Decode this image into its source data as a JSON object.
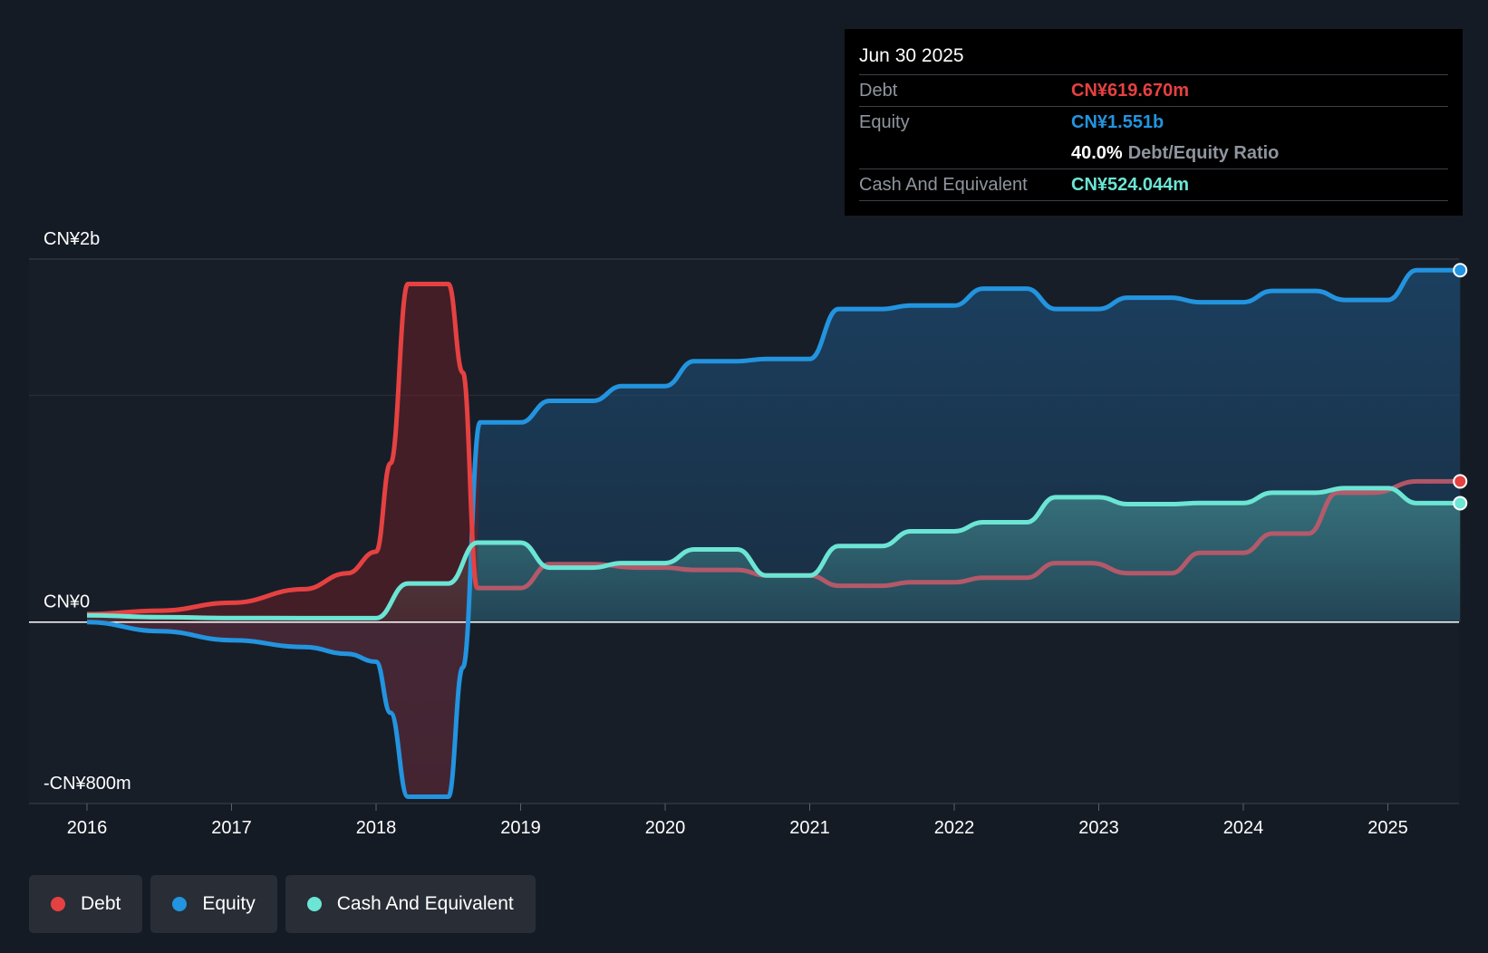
{
  "tooltip": {
    "date": "Jun 30 2025",
    "debt_label": "Debt",
    "debt_value": "CN¥619.670m",
    "equity_label": "Equity",
    "equity_value": "CN¥1.551b",
    "ratio_value": "40.0%",
    "ratio_label": "Debt/Equity Ratio",
    "cash_label": "Cash And Equivalent",
    "cash_value": "CN¥524.044m"
  },
  "legend": [
    {
      "label": "Debt",
      "color": "#e64141"
    },
    {
      "label": "Equity",
      "color": "#2394df"
    },
    {
      "label": "Cash And Equivalent",
      "color": "#6ce5d4"
    }
  ],
  "chart_data": {
    "type": "area",
    "y_unit": "CN¥ millions",
    "ylim": [
      -800,
      1600
    ],
    "y_tick_labels": [
      {
        "value": 1600,
        "label": "CN¥2b"
      },
      {
        "value": 0,
        "label": "CN¥0"
      },
      {
        "value": -800,
        "label": "-CN¥800m"
      }
    ],
    "xlim": [
      2015.6,
      2025.5
    ],
    "x_ticks": [
      "2016",
      "2017",
      "2018",
      "2019",
      "2020",
      "2021",
      "2022",
      "2023",
      "2024",
      "2025"
    ],
    "series": [
      {
        "name": "Debt",
        "color": "#e64141",
        "points": [
          [
            2016.0,
            35
          ],
          [
            2016.5,
            50
          ],
          [
            2017.0,
            85
          ],
          [
            2017.5,
            145
          ],
          [
            2017.8,
            215
          ],
          [
            2018.0,
            310
          ],
          [
            2018.1,
            700
          ],
          [
            2018.22,
            1490
          ],
          [
            2018.5,
            1490
          ],
          [
            2018.6,
            1100
          ],
          [
            2018.7,
            150
          ],
          [
            2019.0,
            150
          ],
          [
            2019.2,
            255
          ],
          [
            2019.5,
            255
          ],
          [
            2019.8,
            240
          ],
          [
            2020.0,
            240
          ],
          [
            2020.2,
            230
          ],
          [
            2020.5,
            230
          ],
          [
            2020.7,
            205
          ],
          [
            2021.0,
            205
          ],
          [
            2021.2,
            160
          ],
          [
            2021.5,
            160
          ],
          [
            2021.7,
            175
          ],
          [
            2022.0,
            175
          ],
          [
            2022.2,
            195
          ],
          [
            2022.5,
            195
          ],
          [
            2022.7,
            260
          ],
          [
            2022.95,
            260
          ],
          [
            2023.2,
            215
          ],
          [
            2023.5,
            215
          ],
          [
            2023.7,
            305
          ],
          [
            2024.0,
            305
          ],
          [
            2024.2,
            390
          ],
          [
            2024.45,
            390
          ],
          [
            2024.65,
            570
          ],
          [
            2024.9,
            570
          ],
          [
            2025.2,
            620
          ],
          [
            2025.5,
            620
          ]
        ]
      },
      {
        "name": "Equity",
        "color": "#2394df",
        "points": [
          [
            2016.0,
            0
          ],
          [
            2016.5,
            -40
          ],
          [
            2017.0,
            -80
          ],
          [
            2017.5,
            -110
          ],
          [
            2017.8,
            -140
          ],
          [
            2018.0,
            -175
          ],
          [
            2018.1,
            -400
          ],
          [
            2018.22,
            -770
          ],
          [
            2018.5,
            -770
          ],
          [
            2018.6,
            -200
          ],
          [
            2018.72,
            880
          ],
          [
            2019.0,
            880
          ],
          [
            2019.2,
            975
          ],
          [
            2019.5,
            975
          ],
          [
            2019.7,
            1040
          ],
          [
            2020.0,
            1040
          ],
          [
            2020.2,
            1150
          ],
          [
            2020.5,
            1150
          ],
          [
            2020.7,
            1160
          ],
          [
            2021.0,
            1160
          ],
          [
            2021.2,
            1380
          ],
          [
            2021.5,
            1380
          ],
          [
            2021.7,
            1395
          ],
          [
            2022.0,
            1395
          ],
          [
            2022.2,
            1470
          ],
          [
            2022.5,
            1470
          ],
          [
            2022.7,
            1380
          ],
          [
            2023.0,
            1380
          ],
          [
            2023.2,
            1430
          ],
          [
            2023.5,
            1430
          ],
          [
            2023.7,
            1410
          ],
          [
            2024.0,
            1410
          ],
          [
            2024.2,
            1460
          ],
          [
            2024.5,
            1460
          ],
          [
            2024.7,
            1420
          ],
          [
            2025.0,
            1420
          ],
          [
            2025.2,
            1551
          ],
          [
            2025.5,
            1551
          ]
        ]
      },
      {
        "name": "Cash And Equivalent",
        "color": "#6ce5d4",
        "points": [
          [
            2016.0,
            30
          ],
          [
            2016.5,
            22
          ],
          [
            2017.0,
            18
          ],
          [
            2017.5,
            17
          ],
          [
            2018.0,
            17
          ],
          [
            2018.22,
            170
          ],
          [
            2018.5,
            170
          ],
          [
            2018.7,
            350
          ],
          [
            2019.0,
            350
          ],
          [
            2019.2,
            240
          ],
          [
            2019.5,
            240
          ],
          [
            2019.7,
            260
          ],
          [
            2020.0,
            260
          ],
          [
            2020.2,
            320
          ],
          [
            2020.5,
            320
          ],
          [
            2020.7,
            205
          ],
          [
            2021.0,
            205
          ],
          [
            2021.2,
            335
          ],
          [
            2021.5,
            335
          ],
          [
            2021.7,
            400
          ],
          [
            2022.0,
            400
          ],
          [
            2022.2,
            440
          ],
          [
            2022.5,
            440
          ],
          [
            2022.7,
            550
          ],
          [
            2023.0,
            550
          ],
          [
            2023.2,
            520
          ],
          [
            2023.5,
            520
          ],
          [
            2023.7,
            525
          ],
          [
            2024.0,
            525
          ],
          [
            2024.2,
            570
          ],
          [
            2024.5,
            570
          ],
          [
            2024.7,
            590
          ],
          [
            2025.0,
            590
          ],
          [
            2025.2,
            524
          ],
          [
            2025.5,
            524
          ]
        ]
      }
    ]
  }
}
